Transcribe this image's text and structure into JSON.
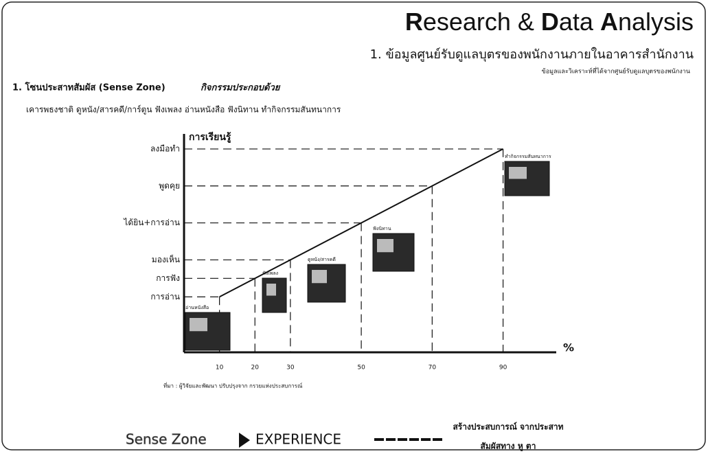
{
  "header": {
    "title_parts": [
      "R",
      "esearch & ",
      "D",
      "ata ",
      "A",
      "nalysis"
    ],
    "section": "1. ข้อมูลศูนย์รับดูแลบุตรของพนักงานภายในอาคารสำนักงาน",
    "note": "ข้อมูลและวิเคราะห์ที่ได้จากศูนย์รับดูแลบุตรของพนักงาน"
  },
  "zone": {
    "heading": "1. โซนประสาทสัมผัส (Sense Zone)",
    "heading_tail": "กิจกรรมประกอบด้วย",
    "activities_text": "เคารพธงชาติ ดูหนัง/สารคดี/การ์ตูน ฟังเพลง อ่านหนังสือ ฟังนิทาน ทำกิจกรรมสันทนาการ"
  },
  "chart_data": {
    "type": "line",
    "y_label": "การเรียนรู้",
    "x_label": "%",
    "x": [
      10,
      90
    ],
    "series": [
      {
        "values": [
          10,
          90
        ],
        "color": "#111111"
      }
    ],
    "xlim": [
      0,
      105
    ],
    "xticks": [
      10,
      20,
      30,
      50,
      70,
      90
    ],
    "ylim": [
      -20,
      100
    ],
    "yticks": [
      {
        "value": 10,
        "label": "การอ่าน"
      },
      {
        "value": 20,
        "label": "การฟัง"
      },
      {
        "value": 30,
        "label": "มองเห็น"
      },
      {
        "value": 50,
        "label": "ได้ยิน+การอ่าน"
      },
      {
        "value": 70,
        "label": "พูดคุย"
      },
      {
        "value": 90,
        "label": "ลงมือทำ"
      }
    ],
    "image_captions": [
      "อ่านหนังสือ",
      "ฟังเพลง",
      "ดูหนัง/สารคดี",
      "ฟังนิทาน",
      "ทำกิจกรรมสันทนาการ"
    ],
    "source": "ที่มา : ผู้วิจัยและพัฒนา ปรับปรุงจาก กรวยแห่งประสบการณ์"
  },
  "footer": {
    "left": "Sense Zone",
    "right": "EXPERIENCE",
    "note_line1": "สร้างประสบการณ์ จากประสาท",
    "note_line2": "สัมผัสทาง หู ตา"
  }
}
